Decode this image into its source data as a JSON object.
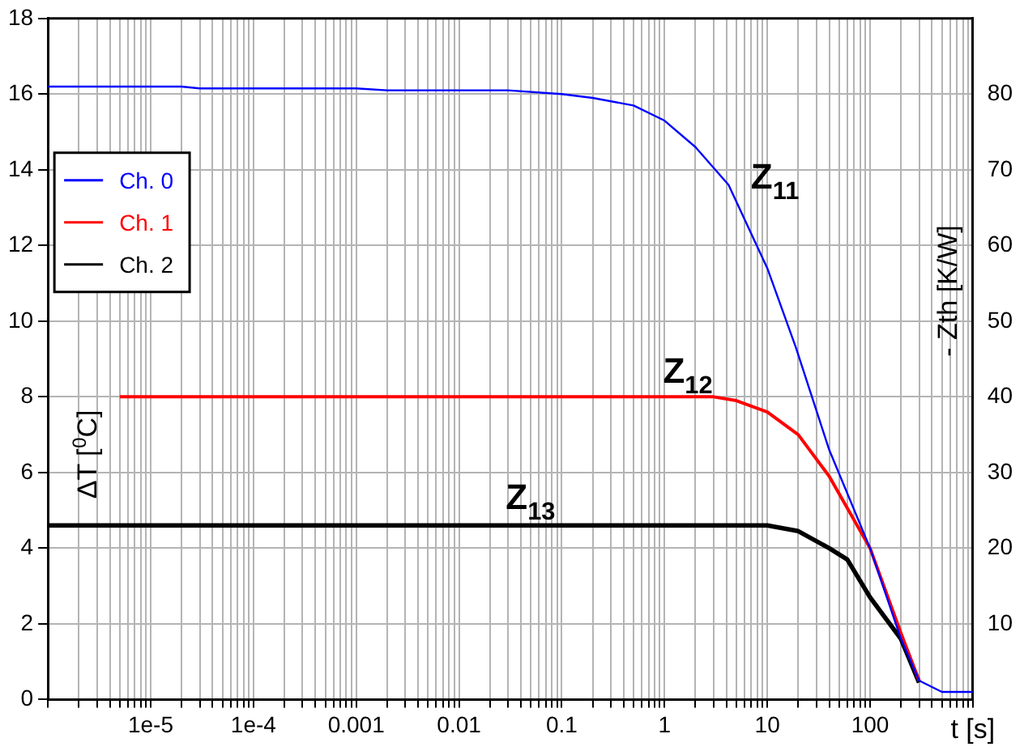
{
  "chart_data": {
    "type": "line",
    "xlabel": "t [s]",
    "ylabel": "ΔT [$^{0}$C]",
    "y2label": "- Zth [K/W]",
    "log": "x",
    "grid": true,
    "legend": "top left",
    "marker": "none",
    "line_style": "solid",
    "xlim": [
      1e-06,
      1000
    ],
    "ylim": [
      0,
      18
    ],
    "y2lim": [
      0,
      90
    ],
    "xticks": [
      {
        "value": 1e-06,
        "label": null
      },
      {
        "value": 2e-06,
        "label": null
      },
      {
        "value": 3e-06,
        "label": null
      },
      {
        "value": 4e-06,
        "label": null
      },
      {
        "value": 5e-06,
        "label": null
      },
      {
        "value": 6e-06,
        "label": null
      },
      {
        "value": 7e-06,
        "label": null
      },
      {
        "value": 8e-06,
        "label": null
      },
      {
        "value": 9e-06,
        "label": null
      },
      {
        "value": 1e-05,
        "label": "1e-5"
      },
      {
        "value": 2e-05,
        "label": null
      },
      {
        "value": 3e-05,
        "label": null
      },
      {
        "value": 4e-05,
        "label": null
      },
      {
        "value": 5e-05,
        "label": null
      },
      {
        "value": 6e-05,
        "label": null
      },
      {
        "value": 7e-05,
        "label": null
      },
      {
        "value": 8e-05,
        "label": null
      },
      {
        "value": 9e-05,
        "label": null
      },
      {
        "value": 0.0001,
        "label": "1e-4"
      },
      {
        "value": 0.0002,
        "label": null
      },
      {
        "value": 0.0003,
        "label": null
      },
      {
        "value": 0.0004,
        "label": null
      },
      {
        "value": 0.0005,
        "label": null
      },
      {
        "value": 0.0006,
        "label": null
      },
      {
        "value": 0.0007,
        "label": null
      },
      {
        "value": 0.0008,
        "label": null
      },
      {
        "value": 0.0009,
        "label": null
      },
      0.001,
      {
        "value": 0.002,
        "label": null
      },
      {
        "value": 0.003,
        "label": null
      },
      {
        "value": 0.004,
        "label": null
      },
      {
        "value": 0.005,
        "label": null
      },
      {
        "value": 0.006,
        "label": null
      },
      {
        "value": 0.007,
        "label": null
      },
      {
        "value": 0.008,
        "label": null
      },
      {
        "value": 0.009,
        "label": null
      },
      0.01,
      {
        "value": 0.02,
        "label": null
      },
      {
        "value": 0.03,
        "label": null
      },
      {
        "value": 0.04,
        "label": null
      },
      {
        "value": 0.05,
        "label": null
      },
      {
        "value": 0.06,
        "label": null
      },
      {
        "value": 0.07,
        "label": null
      },
      {
        "value": 0.08,
        "label": null
      },
      {
        "value": 0.09,
        "label": null
      },
      0.1,
      {
        "value": 0.2,
        "label": null
      },
      {
        "value": 0.3,
        "label": null
      },
      {
        "value": 0.4,
        "label": null
      },
      {
        "value": 0.5,
        "label": null
      },
      {
        "value": 0.6,
        "label": null
      },
      {
        "value": 0.7,
        "label": null
      },
      {
        "value": 0.8,
        "label": null
      },
      {
        "value": 0.9,
        "label": null
      },
      1,
      {
        "value": 2,
        "label": null
      },
      {
        "value": 3,
        "label": null
      },
      {
        "value": 4,
        "label": null
      },
      {
        "value": 5,
        "label": null
      },
      {
        "value": 6,
        "label": null
      },
      {
        "value": 7,
        "label": null
      },
      {
        "value": 8,
        "label": null
      },
      {
        "value": 9,
        "label": null
      },
      10,
      {
        "value": 20,
        "label": null
      },
      {
        "value": 30,
        "label": null
      },
      {
        "value": 40,
        "label": null
      },
      {
        "value": 50,
        "label": null
      },
      {
        "value": 60,
        "label": null
      },
      {
        "value": 70,
        "label": null
      },
      {
        "value": 80,
        "label": null
      },
      {
        "value": 90,
        "label": null
      },
      100,
      {
        "value": 200,
        "label": null
      },
      {
        "value": 300,
        "label": null
      },
      {
        "value": 400,
        "label": null
      },
      {
        "value": 500,
        "label": null
      },
      {
        "value": 600,
        "label": null
      },
      {
        "value": 700,
        "label": null
      },
      {
        "value": 800,
        "label": null
      },
      {
        "value": 900,
        "label": null
      },
      {
        "value": 1000,
        "label": null
      }
    ],
    "yticks": [
      0,
      2,
      4,
      6,
      8,
      10,
      12,
      14,
      16,
      18
    ],
    "y2ticks": [
      10,
      20,
      30,
      40,
      50,
      60,
      70,
      80
    ],
    "series": [
      {
        "name": "Ch. 0",
        "color": "#0000ff",
        "x": [
          1e-06,
          2e-05,
          3e-05,
          0.001,
          0.002,
          0.03,
          0.1,
          0.2,
          0.5,
          1,
          2,
          4.2,
          10,
          19,
          40,
          100,
          200,
          300,
          500,
          1000
        ],
        "values": [
          16.2,
          16.2,
          16.15,
          16.15,
          16.1,
          16.1,
          16.0,
          15.9,
          15.7,
          15.3,
          14.6,
          13.6,
          11.4,
          9.3,
          6.6,
          4.0,
          1.6,
          0.5,
          0.2,
          0.2
        ]
      },
      {
        "name": "Ch. 1",
        "color": "#ff0000",
        "x": [
          5e-06,
          3,
          5,
          10,
          20,
          40,
          100,
          200,
          300
        ],
        "values": [
          8.0,
          8.0,
          7.9,
          7.6,
          7.0,
          5.9,
          4.0,
          1.75,
          0.5
        ]
      },
      {
        "name": "Ch. 2",
        "color": "#000000",
        "x": [
          1e-06,
          10,
          20,
          40,
          60,
          100,
          200,
          300
        ],
        "values": [
          4.6,
          4.6,
          4.45,
          4.0,
          3.7,
          2.7,
          1.6,
          0.45
        ]
      }
    ],
    "annotations": [
      "Z$_{11}$",
      "Z$_{12}$",
      "Z$_{13}$"
    ]
  }
}
